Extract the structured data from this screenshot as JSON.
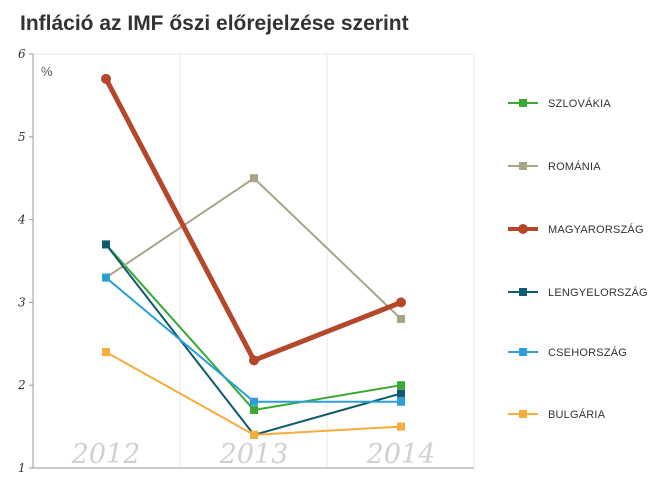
{
  "title": "Infláció az IMF őszi előrejelzése szerint",
  "chart_data": {
    "type": "line",
    "title": "Infláció az IMF őszi előrejelzése szerint",
    "ylabel": "%",
    "xlabel": "",
    "categories": [
      "2012",
      "2013",
      "2014"
    ],
    "ylim": [
      1,
      6
    ],
    "yticks": [
      "1",
      "2",
      "3",
      "4",
      "5",
      "6"
    ],
    "grid": true,
    "legend_position": "right",
    "series": [
      {
        "name": "SZLOVÁKIA",
        "values": [
          3.7,
          1.7,
          2.0
        ],
        "color": "#3aaa35",
        "emphasis": false
      },
      {
        "name": "ROMÁNIA",
        "values": [
          3.3,
          4.5,
          2.8
        ],
        "color": "#a8a485",
        "emphasis": false
      },
      {
        "name": "MAGYARORSZÁG",
        "values": [
          5.7,
          2.3,
          3.0
        ],
        "color": "#b5472a",
        "emphasis": true
      },
      {
        "name": "LENGYELORSZÁG",
        "values": [
          3.7,
          1.4,
          1.9
        ],
        "color": "#0e5a6e",
        "emphasis": false
      },
      {
        "name": "CSEHORSZÁG",
        "values": [
          3.3,
          1.8,
          1.8
        ],
        "color": "#2a9fd8",
        "emphasis": false
      },
      {
        "name": "BULGÁRIA",
        "values": [
          2.4,
          1.4,
          1.5
        ],
        "color": "#f6ad3b",
        "emphasis": false
      }
    ]
  }
}
